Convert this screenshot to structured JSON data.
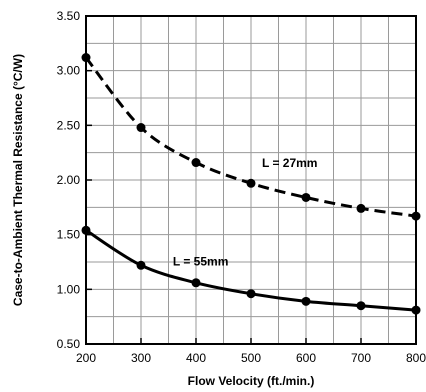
{
  "chart_data": {
    "type": "line",
    "title": "",
    "xlabel": "Flow Velocity (ft./min.)",
    "ylabel": "Case-to-Ambient Thermal Resistance (°C/W)",
    "xlim": [
      200,
      800
    ],
    "ylim": [
      0.5,
      3.5
    ],
    "x_ticks": [
      200,
      300,
      400,
      500,
      600,
      700,
      800
    ],
    "x_tick_labels": [
      "200",
      "300",
      "400",
      "500",
      "600",
      "700",
      "800"
    ],
    "y_ticks": [
      0.5,
      1.0,
      1.5,
      2.0,
      2.5,
      3.0,
      3.5
    ],
    "y_tick_labels": [
      "0.50",
      "1.00",
      "1.50",
      "2.00",
      "2.50",
      "3.00",
      "3.50"
    ],
    "grid": true,
    "legend": "none",
    "x": [
      200,
      300,
      400,
      500,
      600,
      700,
      800
    ],
    "series": [
      {
        "name": "",
        "label": "L = 27mm",
        "style": "dashed",
        "color": "#000000",
        "values": [
          3.12,
          2.48,
          2.16,
          1.97,
          1.84,
          1.74,
          1.67
        ]
      },
      {
        "name": "",
        "label": "L = 55mm",
        "style": "solid",
        "color": "#000000",
        "values": [
          1.54,
          1.22,
          1.06,
          0.96,
          0.89,
          0.85,
          0.81
        ]
      }
    ],
    "annotations": [
      {
        "text": "L = 27mm",
        "x": 520,
        "y": 2.12
      },
      {
        "text": "L = 55mm",
        "x": 358,
        "y": 1.22
      }
    ]
  }
}
